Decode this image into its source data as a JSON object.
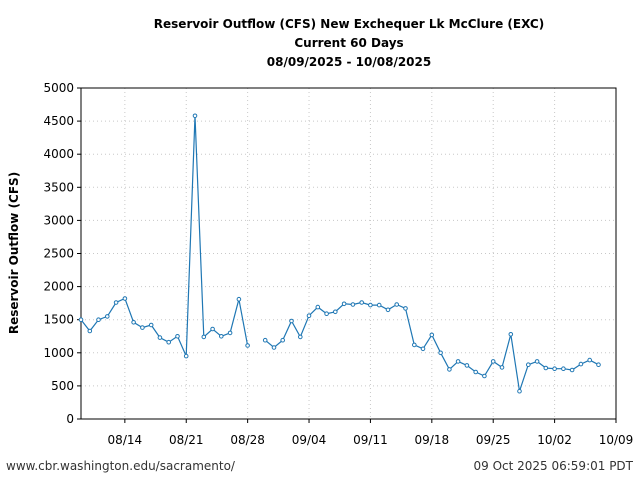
{
  "chart_data": {
    "type": "line",
    "title_lines": [
      "Reservoir Outflow (CFS) New Exchequer Lk McClure (EXC)",
      "Current 60 Days",
      "08/09/2025 - 10/08/2025"
    ],
    "ylabel": "Reservoir Outflow (CFS)",
    "xlabel": "",
    "ylim": [
      0,
      5000
    ],
    "yticks": [
      0,
      500,
      1000,
      1500,
      2000,
      2500,
      3000,
      3500,
      4000,
      4500,
      5000
    ],
    "xlim": [
      "2025-08-09",
      "2025-10-09"
    ],
    "xticks": [
      {
        "date": "2025-08-14",
        "label": "08/14"
      },
      {
        "date": "2025-08-21",
        "label": "08/21"
      },
      {
        "date": "2025-08-28",
        "label": "08/28"
      },
      {
        "date": "2025-09-04",
        "label": "09/04"
      },
      {
        "date": "2025-09-11",
        "label": "09/11"
      },
      {
        "date": "2025-09-18",
        "label": "09/18"
      },
      {
        "date": "2025-09-25",
        "label": "09/25"
      },
      {
        "date": "2025-10-02",
        "label": "10/02"
      },
      {
        "date": "2025-10-09",
        "label": "10/09"
      }
    ],
    "grid": true,
    "line_color": "#1f77b4",
    "series": [
      {
        "x": [
          "2025-08-09",
          "2025-08-10",
          "2025-08-11",
          "2025-08-12",
          "2025-08-13",
          "2025-08-14",
          "2025-08-15",
          "2025-08-16",
          "2025-08-17",
          "2025-08-18",
          "2025-08-19",
          "2025-08-20",
          "2025-08-21",
          "2025-08-22",
          "2025-08-23",
          "2025-08-24",
          "2025-08-25",
          "2025-08-26",
          "2025-08-27",
          "2025-08-28",
          "2025-08-29",
          "2025-08-30",
          "2025-08-31",
          "2025-09-01",
          "2025-09-02",
          "2025-09-03",
          "2025-09-04",
          "2025-09-05",
          "2025-09-06",
          "2025-09-07",
          "2025-09-08",
          "2025-09-09",
          "2025-09-10",
          "2025-09-11",
          "2025-09-12",
          "2025-09-13",
          "2025-09-14",
          "2025-09-15",
          "2025-09-16",
          "2025-09-17",
          "2025-09-18",
          "2025-09-19",
          "2025-09-20",
          "2025-09-21",
          "2025-09-22",
          "2025-09-23",
          "2025-09-24",
          "2025-09-25",
          "2025-09-26",
          "2025-09-27",
          "2025-09-28",
          "2025-09-29",
          "2025-09-30",
          "2025-10-01",
          "2025-10-02",
          "2025-10-03",
          "2025-10-04",
          "2025-10-05",
          "2025-10-06",
          "2025-10-07",
          "2025-10-08"
        ],
        "values": [
          1500,
          1330,
          1500,
          1550,
          1760,
          1820,
          1460,
          1380,
          1420,
          1230,
          1160,
          1250,
          950,
          4580,
          1240,
          1360,
          1250,
          1300,
          1810,
          1110,
          null,
          1190,
          1080,
          1190,
          1480,
          1240,
          1560,
          1690,
          1590,
          1620,
          1740,
          1730,
          1760,
          1720,
          1720,
          1650,
          1730,
          1670,
          1120,
          1060,
          1270,
          1000,
          750,
          870,
          810,
          710,
          650,
          870,
          780,
          1280,
          420,
          820,
          870,
          770,
          760,
          760,
          740,
          830,
          890,
          820,
          null
        ]
      }
    ]
  },
  "footer": {
    "source": "www.cbr.washington.edu/sacramento/",
    "timestamp": "09 Oct 2025 06:59:01 PDT"
  }
}
